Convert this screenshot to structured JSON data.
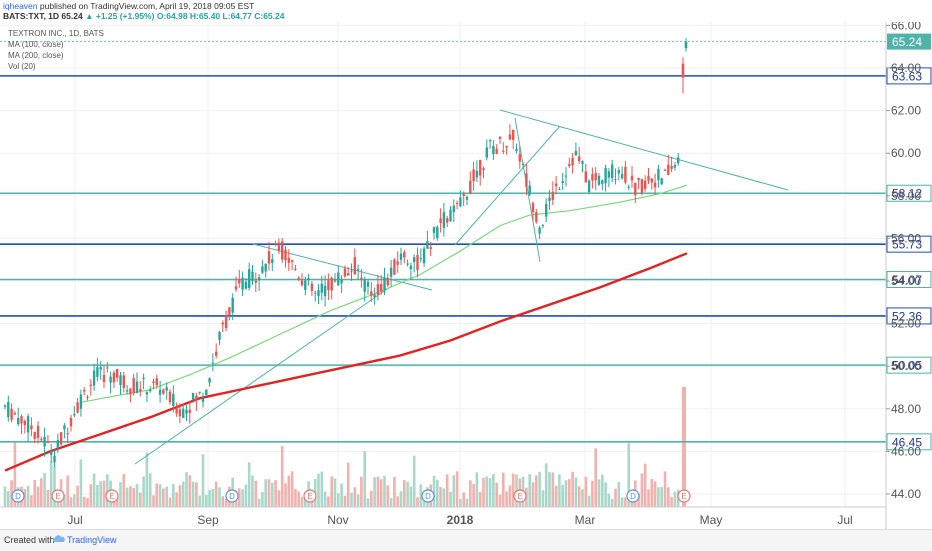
{
  "header": {
    "author": "iqheaven",
    "published": "published on TradingView.com, April 19, 2018 09:05 EST",
    "symbol": "BATS:TXT, 1D",
    "last": "65.24",
    "change": "▲ +1.25 (+1.95%)",
    "open": "O:64.98",
    "high": "H:65.40",
    "low": "L:64.77",
    "close": "C:65.24"
  },
  "chart_data": {
    "type": "candlestick",
    "title": "TEXTRON INC., 1D, BATS",
    "indicators": [
      "MA (100, close)",
      "MA (200, close)",
      "Vol (20)"
    ],
    "x_ticks": [
      "Jul",
      "Sep",
      "Nov",
      "2018",
      "Mar",
      "May",
      "Jul"
    ],
    "y_ticks": [
      "44.00",
      "46.00",
      "48.00",
      "50.00",
      "52.00",
      "54.00",
      "56.00",
      "58.00",
      "60.00",
      "62.00",
      "64.00",
      "66.00"
    ],
    "ylim": [
      44,
      66.8
    ],
    "last_price": "65.24",
    "horizontal_levels": [
      {
        "label": "63.63",
        "value": 63.63,
        "color": "#1e4fb8"
      },
      {
        "label": "58.12",
        "value": 58.12,
        "color": "#4fb3a9"
      },
      {
        "label": "55.73",
        "value": 55.73,
        "color": "#1e4fb8"
      },
      {
        "label": "54.07",
        "value": 54.07,
        "color": "#4fb3a9"
      },
      {
        "label": "52.36",
        "value": 52.36,
        "color": "#1e4fb8"
      },
      {
        "label": "50.05",
        "value": 50.05,
        "color": "#4fb3a9"
      },
      {
        "label": "46.45",
        "value": 46.45,
        "color": "#4fb3a9"
      }
    ],
    "ma100_points": [
      [
        80,
        48.3
      ],
      [
        150,
        48.9
      ],
      [
        190,
        49.6
      ],
      [
        230,
        50.4
      ],
      [
        280,
        51.5
      ],
      [
        330,
        52.6
      ],
      [
        380,
        53.5
      ],
      [
        420,
        54.3
      ],
      [
        460,
        55.4
      ],
      [
        500,
        56.6
      ],
      [
        530,
        57.1
      ],
      [
        570,
        57.3
      ],
      [
        620,
        57.7
      ],
      [
        660,
        58.1
      ],
      [
        687,
        58.5
      ]
    ],
    "ma200_points": [
      [
        5,
        45.1
      ],
      [
        50,
        46.0
      ],
      [
        100,
        46.8
      ],
      [
        150,
        47.6
      ],
      [
        200,
        48.5
      ],
      [
        250,
        49.0
      ],
      [
        300,
        49.5
      ],
      [
        350,
        50.0
      ],
      [
        400,
        50.5
      ],
      [
        450,
        51.2
      ],
      [
        500,
        52.1
      ],
      [
        550,
        52.9
      ],
      [
        600,
        53.7
      ],
      [
        650,
        54.6
      ],
      [
        687,
        55.3
      ]
    ],
    "volume_peak_x": 684
  },
  "events": {
    "dividend": "D",
    "earnings": "E"
  },
  "footer": {
    "created": "Created with",
    "brand": "TradingView"
  }
}
